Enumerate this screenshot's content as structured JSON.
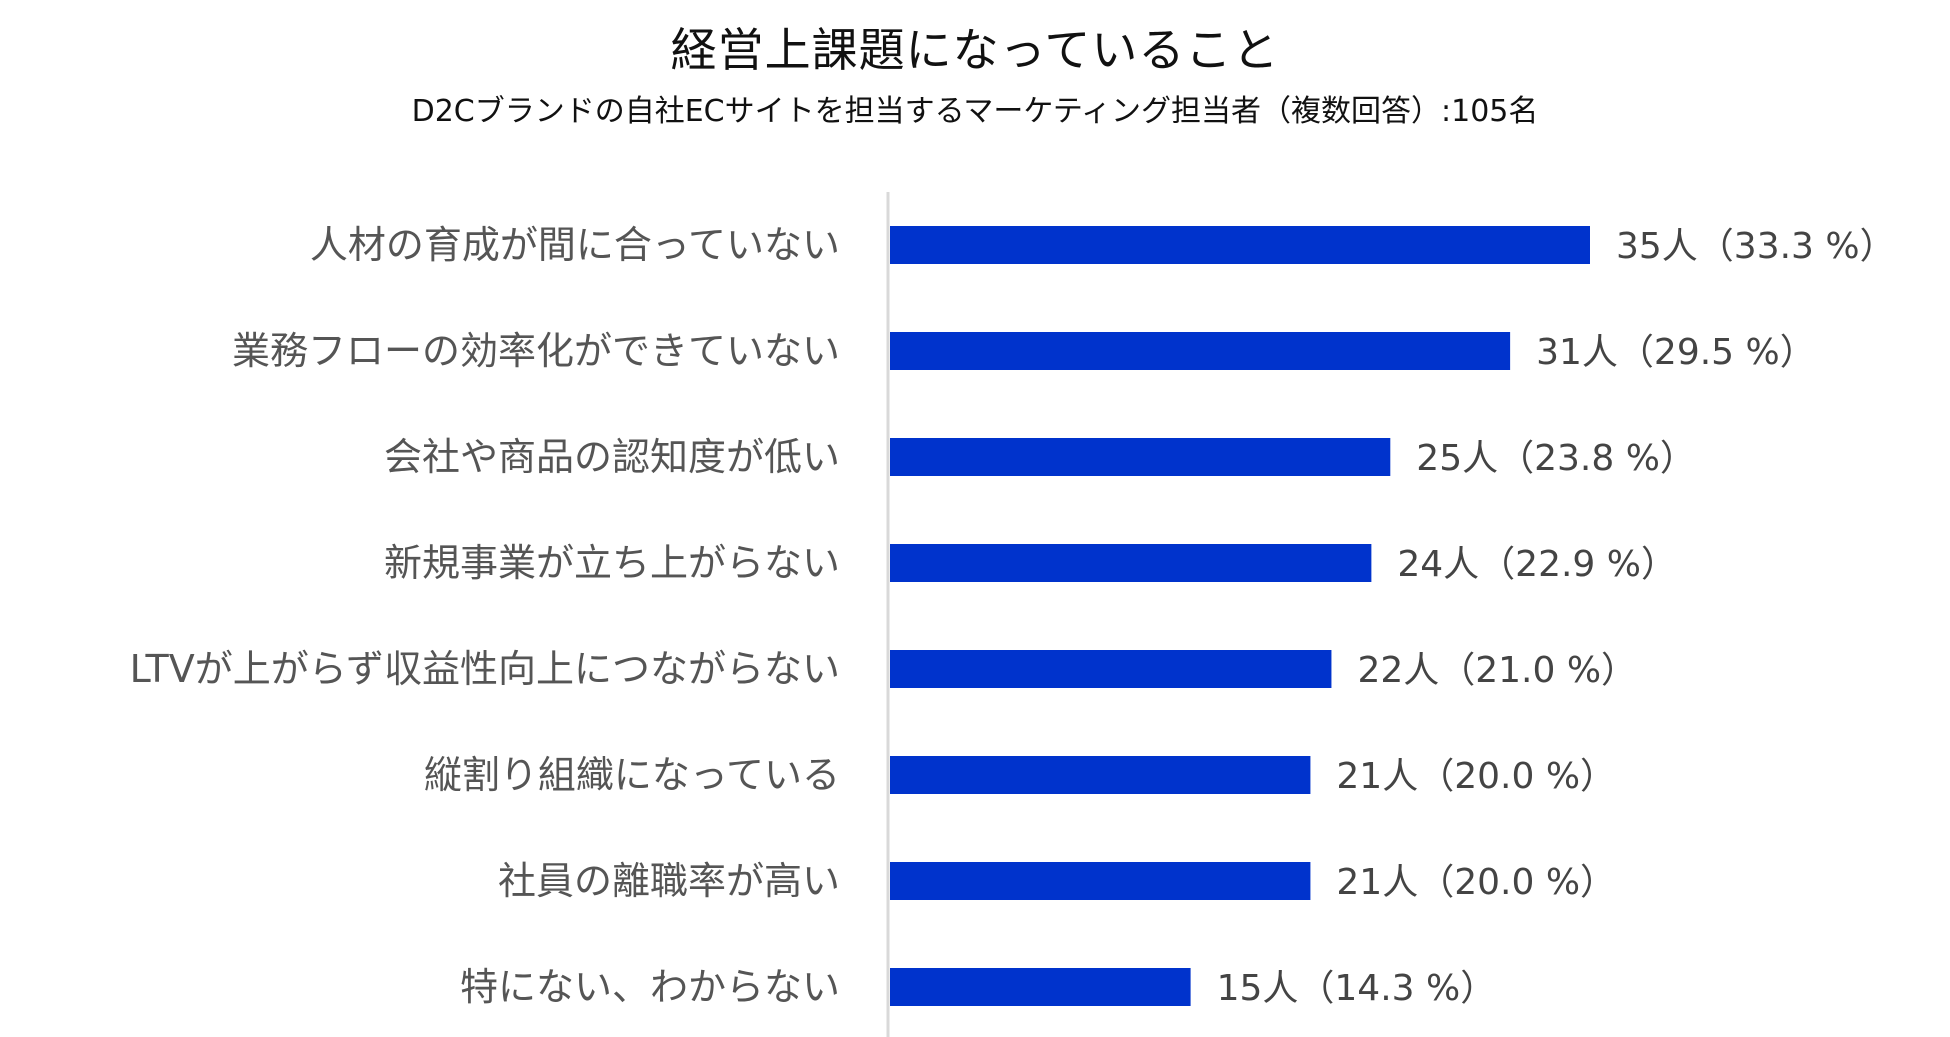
{
  "chart_data": {
    "type": "bar",
    "orientation": "horizontal",
    "title": "経営上課題になっていること",
    "subtitle": "D2Cブランドの自社ECサイトを担当するマーケティング担当者（複数回答）:105名",
    "categories": [
      "人材の育成が間に合っていない",
      "業務フローの効率化ができていない",
      "会社や商品の認知度が低い",
      "新規事業が立ち上がらない",
      "LTVが上がらず収益性向上につながらない",
      "縦割り組織になっている",
      "社員の離職率が高い",
      "特にない、わからない"
    ],
    "values": [
      33.3,
      29.5,
      23.8,
      22.9,
      21.0,
      20.0,
      20.0,
      14.3
    ],
    "counts": [
      35,
      31,
      25,
      24,
      22,
      21,
      21,
      15
    ],
    "value_labels": [
      "35人（33.3 %）",
      "31人（29.5 %）",
      "25人（23.8 %）",
      "24人（22.9 %）",
      "22人（21.0 %）",
      "21人（20.0 %）",
      "21人（20.0 %）",
      "15人（14.3 %）"
    ],
    "unit": "%",
    "xlim": [
      0,
      50
    ],
    "grid": false,
    "bar_color": "#0033CC",
    "axis_color": "#D9D9D9"
  }
}
